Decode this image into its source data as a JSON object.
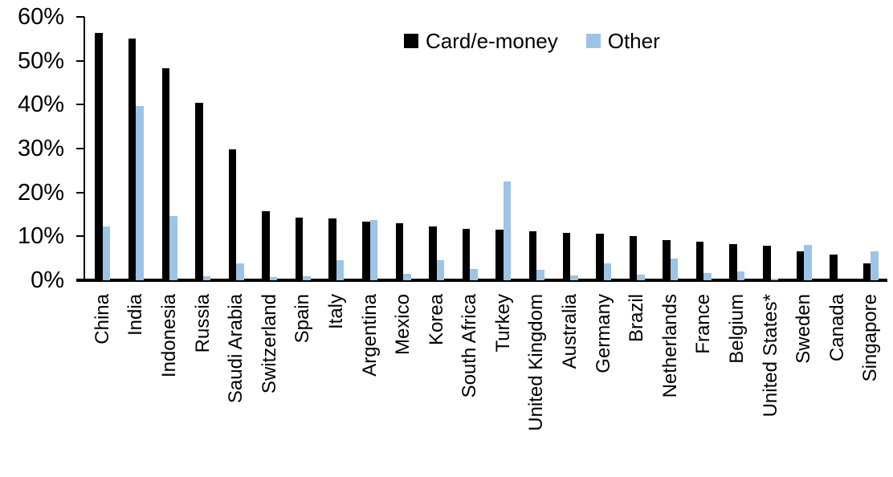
{
  "chart_data": {
    "type": "bar",
    "title": "",
    "xlabel": "",
    "ylabel": "",
    "categories": [
      "China",
      "India",
      "Indonesia",
      "Russia",
      "Saudi Arabia",
      "Switzerland",
      "Spain",
      "Italy",
      "Argentina",
      "Mexico",
      "Korea",
      "South Africa",
      "Turkey",
      "United Kingdom",
      "Australia",
      "Germany",
      "Brazil",
      "Netherlands",
      "France",
      "Belgium",
      "United States*",
      "Sweden",
      "Canada",
      "Singapore"
    ],
    "series": [
      {
        "name": "Card/e-money",
        "color": "#000000",
        "values": [
          56.3,
          55.0,
          48.3,
          40.5,
          29.8,
          15.7,
          14.2,
          14.1,
          13.4,
          13.0,
          12.3,
          11.8,
          11.6,
          11.1,
          10.8,
          10.6,
          10.0,
          9.2,
          8.7,
          8.2,
          7.9,
          6.6,
          5.9,
          3.9
        ]
      },
      {
        "name": "Other",
        "color": "#9DC3E6",
        "values": [
          12.3,
          39.7,
          14.6,
          1.0,
          3.9,
          0.7,
          1.0,
          4.6,
          13.8,
          1.4,
          4.6,
          2.5,
          22.5,
          2.4,
          1.1,
          3.9,
          1.3,
          4.9,
          1.6,
          2.1,
          0.4,
          8.1,
          0.0,
          6.6
        ]
      }
    ],
    "ylim": [
      0,
      60
    ],
    "yticks": [
      0,
      10,
      20,
      30,
      40,
      50,
      60
    ],
    "ytick_labels": [
      "0%",
      "10%",
      "20%",
      "30%",
      "40%",
      "50%",
      "60%"
    ],
    "grid": false,
    "legend_position": "top-center",
    "axis_color": "#000000",
    "background_color": "#FFFFFF"
  }
}
